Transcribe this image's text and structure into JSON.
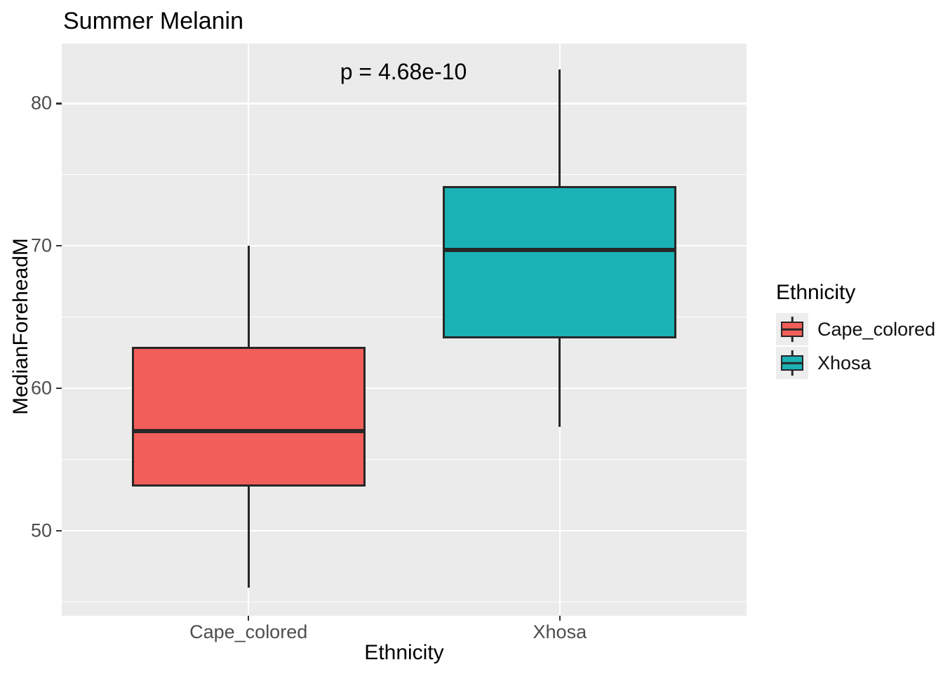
{
  "title": "Summer Melanin",
  "annotation": {
    "text": "p = 4.68e-10"
  },
  "axes": {
    "x_title": "Ethnicity",
    "y_title": "MedianForeheadM",
    "y_tick_labels": [
      "80",
      "70",
      "60",
      "50"
    ]
  },
  "legend": {
    "title": "Ethnicity",
    "items": [
      {
        "label": "Cape_colored",
        "color": "#F25E59"
      },
      {
        "label": "Xhosa",
        "color": "#1AB2B5"
      }
    ]
  },
  "chart_data": {
    "type": "box",
    "title": "Summer Melanin",
    "xlabel": "Ethnicity",
    "ylabel": "MedianForeheadM",
    "categories": [
      "Cape_colored",
      "Xhosa"
    ],
    "series": [
      {
        "name": "Cape_colored",
        "color": "#F25E59",
        "whisker_low": 46.0,
        "q1": 53.1,
        "median": 57.0,
        "q3": 62.9,
        "whisker_high": 70.0
      },
      {
        "name": "Xhosa",
        "color": "#1AB2B5",
        "whisker_low": 57.3,
        "q1": 63.5,
        "median": 69.7,
        "q3": 74.2,
        "whisker_high": 82.4
      }
    ],
    "annotation": "p = 4.68e-10",
    "ylim": [
      44.05,
      84.2
    ],
    "yticks_major": [
      50,
      60,
      70,
      80
    ],
    "yticks_minor": [
      45,
      55,
      65,
      75
    ],
    "grid": true,
    "legend_position": "right"
  },
  "colors": {
    "panel_bg": "#EBEBEB",
    "grid": "#FFFFFF",
    "stroke": "#272727",
    "tick_label": "#4D4D4D",
    "legend_key_bg": "#EDEDED"
  }
}
